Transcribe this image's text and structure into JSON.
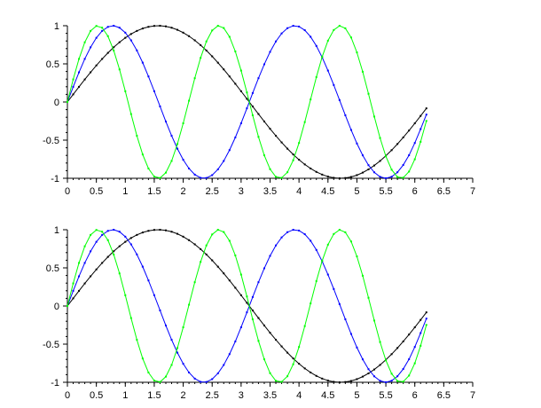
{
  "chart_data": [
    {
      "type": "line",
      "title": "",
      "xlabel": "",
      "ylabel": "",
      "xlim": [
        0,
        7
      ],
      "ylim": [
        -1,
        1
      ],
      "grid": false,
      "x_ticks": [
        "0",
        "0.5",
        "1",
        "1.5",
        "2",
        "2.5",
        "3",
        "3.5",
        "4",
        "4.5",
        "5",
        "5.5",
        "6",
        "6.5",
        "7"
      ],
      "y_ticks": [
        "-1",
        "-0.5",
        "0",
        "0.5",
        "1"
      ],
      "x": {
        "start": 0,
        "step": 0.1,
        "end": 6.2
      },
      "series": [
        {
          "color": "#000000",
          "marker": "dot",
          "values": [
            0,
            0.0998,
            0.1987,
            0.2955,
            0.3894,
            0.4794,
            0.5646,
            0.6442,
            0.7174,
            0.7833,
            0.8415,
            0.8912,
            0.932,
            0.9636,
            0.9854,
            0.9975,
            0.9996,
            0.9917,
            0.9738,
            0.9463,
            0.9093,
            0.8632,
            0.8085,
            0.7457,
            0.6755,
            0.5985,
            0.5155,
            0.4274,
            0.335,
            0.2392,
            0.1411,
            0.0416,
            -0.0584,
            -0.1577,
            -0.2555,
            -0.3508,
            -0.4425,
            -0.5298,
            -0.6119,
            -0.6878,
            -0.7568,
            -0.8183,
            -0.8716,
            -0.9162,
            -0.9516,
            -0.9775,
            -0.9937,
            -0.9999,
            -0.9962,
            -0.9825,
            -0.9589,
            -0.9258,
            -0.8835,
            -0.8323,
            -0.7728,
            -0.7055,
            -0.6313,
            -0.5507,
            -0.4646,
            -0.3739,
            -0.2794,
            -0.1822,
            -0.0831
          ]
        },
        {
          "color": "#0000ff",
          "marker": "dot",
          "values": [
            0,
            0.199,
            0.389,
            0.565,
            0.717,
            0.841,
            0.932,
            0.985,
            1.0,
            0.974,
            0.909,
            0.808,
            0.676,
            0.516,
            0.335,
            0.141,
            -0.058,
            -0.256,
            -0.443,
            -0.612,
            -0.757,
            -0.872,
            -0.952,
            -0.994,
            -0.996,
            -0.959,
            -0.883,
            -0.773,
            -0.631,
            -0.465,
            -0.279,
            -0.083,
            0.117,
            0.312,
            0.494,
            0.657,
            0.794,
            0.899,
            0.968,
            0.999,
            0.989,
            0.941,
            0.855,
            0.735,
            0.585,
            0.412,
            0.223,
            0.025,
            -0.174,
            -0.366,
            -0.544,
            -0.699,
            -0.828,
            -0.922,
            -0.981,
            -1.0,
            -0.98,
            -0.921,
            -0.826,
            -0.698,
            -0.537,
            -0.355,
            -0.165
          ]
        },
        {
          "color": "#00ff00",
          "marker": "dot",
          "values": [
            0,
            0.296,
            0.565,
            0.783,
            0.932,
            0.997,
            0.974,
            0.863,
            0.675,
            0.427,
            0.141,
            -0.158,
            -0.443,
            -0.688,
            -0.872,
            -0.978,
            -0.996,
            -0.926,
            -0.773,
            -0.551,
            -0.279,
            0.017,
            0.312,
            0.578,
            0.794,
            0.938,
            0.999,
            0.97,
            0.855,
            0.663,
            0.412,
            0.125,
            -0.174,
            -0.457,
            -0.699,
            -0.88,
            -0.981,
            -0.994,
            -0.921,
            -0.764,
            -0.537,
            -0.263,
            0.034,
            0.327,
            0.592,
            0.804,
            0.944,
            0.999,
            0.966,
            0.846,
            0.65,
            0.397,
            0.108,
            -0.191,
            -0.472,
            -0.712,
            -0.888,
            -0.984,
            -0.992,
            -0.912,
            -0.751,
            -0.522,
            -0.248
          ]
        }
      ]
    },
    {
      "type": "line",
      "title": "",
      "xlabel": "",
      "ylabel": "",
      "xlim": [
        0,
        7
      ],
      "ylim": [
        -1,
        1
      ],
      "grid": false,
      "x_ticks": [
        "0",
        "0.5",
        "1",
        "1.5",
        "2",
        "2.5",
        "3",
        "3.5",
        "4",
        "4.5",
        "5",
        "5.5",
        "6",
        "6.5",
        "7"
      ],
      "y_ticks": [
        "-1",
        "-0.5",
        "0",
        "0.5",
        "1"
      ],
      "x": {
        "start": 0,
        "step": 0.1,
        "end": 6.2
      },
      "series": [
        {
          "color": "#000000",
          "marker": "dot",
          "values": [
            0,
            0.0998,
            0.1987,
            0.2955,
            0.3894,
            0.4794,
            0.5646,
            0.6442,
            0.7174,
            0.7833,
            0.8415,
            0.8912,
            0.932,
            0.9636,
            0.9854,
            0.9975,
            0.9996,
            0.9917,
            0.9738,
            0.9463,
            0.9093,
            0.8632,
            0.8085,
            0.7457,
            0.6755,
            0.5985,
            0.5155,
            0.4274,
            0.335,
            0.2392,
            0.1411,
            0.0416,
            -0.0584,
            -0.1577,
            -0.2555,
            -0.3508,
            -0.4425,
            -0.5298,
            -0.6119,
            -0.6878,
            -0.7568,
            -0.8183,
            -0.8716,
            -0.9162,
            -0.9516,
            -0.9775,
            -0.9937,
            -0.9999,
            -0.9962,
            -0.9825,
            -0.9589,
            -0.9258,
            -0.8835,
            -0.8323,
            -0.7728,
            -0.7055,
            -0.6313,
            -0.5507,
            -0.4646,
            -0.3739,
            -0.2794,
            -0.1822,
            -0.0831
          ]
        },
        {
          "color": "#0000ff",
          "marker": "dot",
          "values": [
            0,
            0.199,
            0.389,
            0.565,
            0.717,
            0.841,
            0.932,
            0.985,
            1.0,
            0.974,
            0.909,
            0.808,
            0.676,
            0.516,
            0.335,
            0.141,
            -0.058,
            -0.256,
            -0.443,
            -0.612,
            -0.757,
            -0.872,
            -0.952,
            -0.994,
            -0.996,
            -0.959,
            -0.883,
            -0.773,
            -0.631,
            -0.465,
            -0.279,
            -0.083,
            0.117,
            0.312,
            0.494,
            0.657,
            0.794,
            0.899,
            0.968,
            0.999,
            0.989,
            0.941,
            0.855,
            0.735,
            0.585,
            0.412,
            0.223,
            0.025,
            -0.174,
            -0.366,
            -0.544,
            -0.699,
            -0.828,
            -0.922,
            -0.981,
            -1.0,
            -0.98,
            -0.921,
            -0.826,
            -0.698,
            -0.537,
            -0.355,
            -0.165
          ]
        },
        {
          "color": "#00ff00",
          "marker": "dot",
          "values": [
            0,
            0.296,
            0.565,
            0.783,
            0.932,
            0.997,
            0.974,
            0.863,
            0.675,
            0.427,
            0.141,
            -0.158,
            -0.443,
            -0.688,
            -0.872,
            -0.978,
            -0.996,
            -0.926,
            -0.773,
            -0.551,
            -0.279,
            0.017,
            0.312,
            0.578,
            0.794,
            0.938,
            0.999,
            0.97,
            0.855,
            0.663,
            0.412,
            0.125,
            -0.174,
            -0.457,
            -0.699,
            -0.88,
            -0.981,
            -0.994,
            -0.921,
            -0.764,
            -0.537,
            -0.263,
            0.034,
            0.327,
            0.592,
            0.804,
            0.944,
            0.999,
            0.966,
            0.846,
            0.65,
            0.397,
            0.108,
            -0.191,
            -0.472,
            -0.712,
            -0.888,
            -0.984,
            -0.992,
            -0.912,
            -0.751,
            -0.522,
            -0.248
          ]
        }
      ]
    }
  ]
}
